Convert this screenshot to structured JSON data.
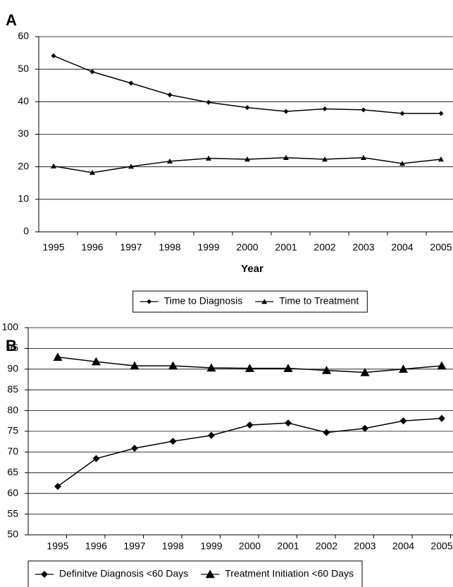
{
  "chart_data": [
    {
      "type": "line",
      "panel": "A",
      "xlabel": "Year",
      "categories": [
        "1995",
        "1996",
        "1997",
        "1998",
        "1999",
        "2000",
        "2001",
        "2002",
        "2003",
        "2004",
        "2005"
      ],
      "series": [
        {
          "name": "Time to Diagnosis",
          "color": "#000000",
          "marker": "diamond",
          "values": [
            54.1,
            49.2,
            45.7,
            42.1,
            39.8,
            38.2,
            37.0,
            37.8,
            37.5,
            36.4,
            36.4
          ]
        },
        {
          "name": "Time to Treatment",
          "color": "#000000",
          "marker": "triangle",
          "values": [
            20.2,
            18.2,
            20.1,
            21.7,
            22.6,
            22.3,
            22.8,
            22.3,
            22.8,
            21.0,
            22.3
          ]
        }
      ],
      "ylim": [
        0,
        60
      ],
      "yticks": [
        0,
        10,
        20,
        30,
        40,
        50,
        60
      ],
      "grid": true,
      "legend": "bottom"
    },
    {
      "type": "line",
      "panel": "B",
      "categories": [
        "1995",
        "1996",
        "1997",
        "1998",
        "1999",
        "2000",
        "2001",
        "2002",
        "2003",
        "2004",
        "2005"
      ],
      "series": [
        {
          "name": "Definitve Diagnosis <60 Days",
          "color": "#000000",
          "marker": "diamond",
          "values": [
            61.7,
            68.4,
            70.9,
            72.6,
            74.0,
            76.5,
            77.0,
            74.7,
            75.7,
            77.5,
            78.1
          ]
        },
        {
          "name": "Treatment Initiation <60 Days",
          "color": "#000000",
          "marker": "triangle",
          "values": [
            92.9,
            91.8,
            90.8,
            90.8,
            90.3,
            90.2,
            90.2,
            89.7,
            89.2,
            90.0,
            90.8
          ]
        }
      ],
      "ylim": [
        50,
        100
      ],
      "yticks": [
        50,
        55,
        60,
        65,
        70,
        75,
        80,
        85,
        90,
        95,
        100
      ],
      "grid": true,
      "legend": "bottom"
    }
  ]
}
